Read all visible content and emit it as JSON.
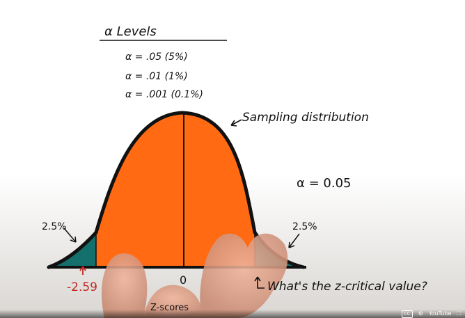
{
  "levels": {
    "title": "α Levels",
    "items": [
      "α = .05 (5%)",
      "α = .01 (1%)",
      "α = .001 (0.1%)"
    ]
  },
  "annotations": {
    "sampling_label": "Sampling distribution",
    "alpha_value": "α = 0.05",
    "left_tail_pct": "2.5%",
    "right_tail_pct": "2.5%",
    "left_critical": "-2.59",
    "center_zero": "0",
    "question": "What's the z-critical value?",
    "axis_label": "Z-scores"
  },
  "colors": {
    "body_fill": "#ff6a13",
    "tail_fill": "#13706c",
    "outline": "#111111",
    "critical_text": "#c0271f"
  },
  "player": {
    "cc_label": "CC",
    "settings_icon": "gear-icon",
    "brand": "YouTube",
    "fullscreen_icon": "fullscreen-icon"
  }
}
